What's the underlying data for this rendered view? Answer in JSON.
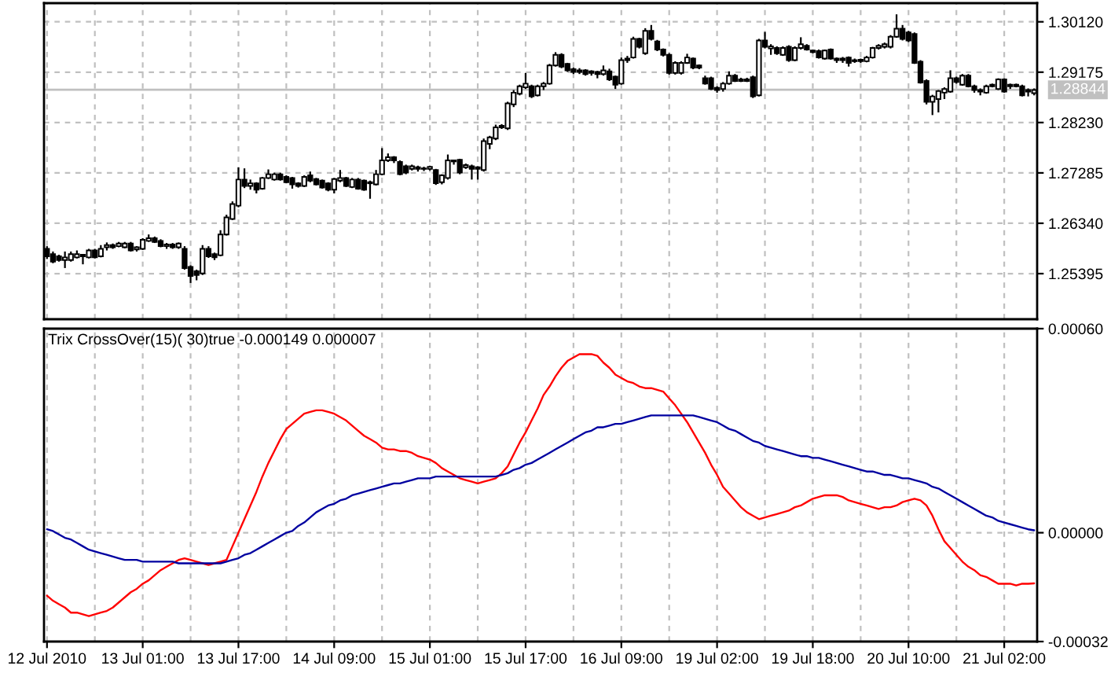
{
  "chart_data": [
    {
      "type": "candlestick",
      "categories": [
        null,
        null,
        null,
        null,
        null,
        null,
        null,
        null,
        null,
        null,
        null,
        null,
        null,
        null,
        null,
        null,
        null,
        null,
        null,
        null,
        null,
        null,
        null,
        null,
        null,
        null,
        null,
        null,
        null,
        null,
        null,
        null,
        null,
        null,
        null,
        null,
        null,
        null,
        null,
        null,
        null,
        null,
        null,
        null,
        null,
        null,
        null,
        null,
        null,
        null,
        null,
        null,
        null,
        null,
        null,
        null,
        null,
        null,
        null,
        null,
        null,
        null,
        null,
        null,
        null,
        null,
        null,
        null,
        null,
        null,
        null,
        null,
        null,
        null,
        null,
        null,
        null,
        null,
        null,
        null,
        null,
        null,
        null,
        null,
        null,
        null,
        null,
        null,
        null,
        null,
        null,
        null,
        null,
        null,
        null,
        null,
        null,
        null,
        null,
        null,
        null,
        null,
        null,
        null,
        null,
        null,
        null,
        null,
        null,
        null,
        null,
        null,
        null,
        null,
        null,
        null,
        null,
        null,
        null,
        null,
        null,
        null,
        null,
        null,
        null,
        null,
        null,
        null,
        null,
        null,
        null,
        null,
        null,
        null,
        null,
        null,
        null,
        null,
        null,
        null,
        null,
        null,
        null,
        null,
        null,
        null,
        null,
        null,
        null,
        null,
        null,
        null,
        null,
        null,
        null,
        null,
        null,
        null,
        null,
        null,
        null,
        null,
        null,
        null,
        null,
        null
      ],
      "ohlc": [
        [
          1.2586,
          1.2591,
          1.2567,
          1.2572
        ],
        [
          1.2576,
          1.2581,
          1.2559,
          1.2562
        ],
        [
          1.2572,
          1.2575,
          1.2562,
          1.2565
        ],
        [
          1.2565,
          1.2581,
          1.255,
          1.257
        ],
        [
          1.2565,
          1.2581,
          1.2562,
          1.2576
        ],
        [
          1.257,
          1.2583,
          1.2568,
          1.2576
        ],
        [
          1.2575,
          1.2576,
          1.2557,
          1.2572
        ],
        [
          1.257,
          1.2586,
          1.2568,
          1.2583
        ],
        [
          1.2583,
          1.2586,
          1.2568,
          1.257
        ],
        [
          1.2572,
          1.2593,
          1.257,
          1.2586
        ],
        [
          1.2589,
          1.2598,
          1.2583,
          1.2593
        ],
        [
          1.2593,
          1.2596,
          1.2586,
          1.2589
        ],
        [
          1.2591,
          1.2599,
          1.2589,
          1.2596
        ],
        [
          1.2589,
          1.2599,
          1.2587,
          1.2596
        ],
        [
          1.2596,
          1.2599,
          1.2581,
          1.2583
        ],
        [
          1.2585,
          1.2591,
          1.2581,
          1.2589
        ],
        [
          1.2586,
          1.2606,
          1.2584,
          1.2603
        ],
        [
          1.2601,
          1.2613,
          1.2599,
          1.2606
        ],
        [
          1.2606,
          1.2609,
          1.2597,
          1.2599
        ],
        [
          1.2601,
          1.2604,
          1.2589,
          1.2591
        ],
        [
          1.2591,
          1.2597,
          1.2586,
          1.2594
        ],
        [
          1.2594,
          1.2597,
          1.2586,
          1.2589
        ],
        [
          1.2589,
          1.2598,
          1.2586,
          1.2596
        ],
        [
          1.2586,
          1.2591,
          1.2547,
          1.255
        ],
        [
          1.2552,
          1.2555,
          1.2522,
          1.2535
        ],
        [
          1.2544,
          1.2547,
          1.2527,
          1.2537
        ],
        [
          1.254,
          1.2593,
          1.2537,
          1.2586
        ],
        [
          1.2586,
          1.2591,
          1.2569,
          1.2572
        ],
        [
          1.2576,
          1.2579,
          1.2565,
          1.257
        ],
        [
          1.2574,
          1.2621,
          1.2572,
          1.2613
        ],
        [
          1.2613,
          1.265,
          1.2611,
          1.2645
        ],
        [
          1.2642,
          1.2675,
          1.264,
          1.267
        ],
        [
          1.2667,
          1.2739,
          1.2664,
          1.2716
        ],
        [
          1.2716,
          1.2737,
          1.27,
          1.2704
        ],
        [
          1.2704,
          1.2716,
          1.2697,
          1.2709
        ],
        [
          1.2709,
          1.2711,
          1.269,
          1.2697
        ],
        [
          1.2699,
          1.2721,
          1.2697,
          1.2719
        ],
        [
          1.2719,
          1.2735,
          1.2717,
          1.2726
        ],
        [
          1.2716,
          1.2729,
          1.2714,
          1.2726
        ],
        [
          1.2726,
          1.2729,
          1.2714,
          1.2716
        ],
        [
          1.2721,
          1.2724,
          1.2709,
          1.2711
        ],
        [
          1.2719,
          1.2721,
          1.2699,
          1.2707
        ],
        [
          1.2709,
          1.2711,
          1.2701,
          1.2704
        ],
        [
          1.2704,
          1.2724,
          1.2702,
          1.2721
        ],
        [
          1.2724,
          1.2731,
          1.2711,
          1.2714
        ],
        [
          1.2717,
          1.2719,
          1.2705,
          1.2707
        ],
        [
          1.2714,
          1.2716,
          1.2699,
          1.2701
        ],
        [
          1.2709,
          1.2711,
          1.2694,
          1.2697
        ],
        [
          1.2697,
          1.2719,
          1.269,
          1.2717
        ],
        [
          1.2714,
          1.2734,
          1.2711,
          1.2719
        ],
        [
          1.2719,
          1.2721,
          1.2702,
          1.2704
        ],
        [
          1.2702,
          1.2719,
          1.27,
          1.2716
        ],
        [
          1.2716,
          1.2719,
          1.2697,
          1.2699
        ],
        [
          1.2714,
          1.2716,
          1.2695,
          1.2697
        ],
        [
          1.2709,
          1.2714,
          1.268,
          1.2711
        ],
        [
          1.2707,
          1.2734,
          1.2705,
          1.2726
        ],
        [
          1.2726,
          1.2775,
          1.2724,
          1.2752
        ],
        [
          1.2752,
          1.2765,
          1.2749,
          1.2758
        ],
        [
          1.2758,
          1.276,
          1.2747,
          1.2752
        ],
        [
          1.2749,
          1.2752,
          1.2724,
          1.2726
        ],
        [
          1.2741,
          1.2744,
          1.2726,
          1.2729
        ],
        [
          1.2736,
          1.2744,
          1.2733,
          1.2741
        ],
        [
          1.2739,
          1.2742,
          1.2731,
          1.2736
        ],
        [
          1.2736,
          1.274,
          1.2732,
          1.2737
        ],
        [
          1.2736,
          1.2742,
          1.2733,
          1.274
        ],
        [
          1.2734,
          1.2736,
          1.2706,
          1.2709
        ],
        [
          1.2711,
          1.2726,
          1.2707,
          1.2724
        ],
        [
          1.2719,
          1.2763,
          1.2716,
          1.2752
        ],
        [
          1.2752,
          1.2753,
          1.2744,
          1.275
        ],
        [
          1.2753,
          1.2755,
          1.2726,
          1.2729
        ],
        [
          1.2739,
          1.2746,
          1.2736,
          1.2743
        ],
        [
          1.2741,
          1.2744,
          1.2716,
          1.2736
        ],
        [
          1.2736,
          1.2741,
          1.2716,
          1.2739
        ],
        [
          1.2734,
          1.2793,
          1.2731,
          1.2788
        ],
        [
          1.2783,
          1.2798,
          1.2773,
          1.2795
        ],
        [
          1.2793,
          1.2819,
          1.279,
          1.2814
        ],
        [
          1.2814,
          1.282,
          1.2811,
          1.2817
        ],
        [
          1.2812,
          1.2862,
          1.2809,
          1.2859
        ],
        [
          1.2857,
          1.2884,
          1.2852,
          1.2879
        ],
        [
          1.2877,
          1.2894,
          1.2874,
          1.2891
        ],
        [
          1.2889,
          1.2916,
          1.2886,
          1.2896
        ],
        [
          1.2891,
          1.2894,
          1.2869,
          1.2872
        ],
        [
          1.2874,
          1.2894,
          1.2872,
          1.2891
        ],
        [
          1.2891,
          1.2899,
          1.2884,
          1.2896
        ],
        [
          1.2896,
          1.2933,
          1.2894,
          1.293
        ],
        [
          1.293,
          1.2955,
          1.2928,
          1.295
        ],
        [
          1.295,
          1.2953,
          1.2925,
          1.2928
        ],
        [
          1.2933,
          1.2935,
          1.2918,
          1.2921
        ],
        [
          1.2923,
          1.2926,
          1.2914,
          1.2918
        ],
        [
          1.2918,
          1.2925,
          1.2914,
          1.2921
        ],
        [
          1.2921,
          1.2923,
          1.2911,
          1.2914
        ],
        [
          1.2916,
          1.2921,
          1.2911,
          1.2919
        ],
        [
          1.2918,
          1.292,
          1.2906,
          1.2914
        ],
        [
          1.2914,
          1.293,
          1.2911,
          1.2921
        ],
        [
          1.2919,
          1.2924,
          1.2901,
          1.2904
        ],
        [
          1.2909,
          1.2911,
          1.2886,
          1.2894
        ],
        [
          1.2896,
          1.2945,
          1.2894,
          1.294
        ],
        [
          1.294,
          1.2948,
          1.2935,
          1.2943
        ],
        [
          1.2945,
          1.2984,
          1.2943,
          1.298
        ],
        [
          1.298,
          1.2982,
          1.2962,
          1.2965
        ],
        [
          1.2953,
          1.3,
          1.295,
          1.2995
        ],
        [
          1.2995,
          1.3006,
          1.2977,
          1.298
        ],
        [
          1.2975,
          1.2978,
          1.2957,
          1.296
        ],
        [
          1.296,
          1.2962,
          1.2947,
          1.295
        ],
        [
          1.295,
          1.2953,
          1.2913,
          1.2916
        ],
        [
          1.2916,
          1.2938,
          1.2913,
          1.2935
        ],
        [
          1.2916,
          1.2938,
          1.2913,
          1.2935
        ],
        [
          1.2935,
          1.2952,
          1.2933,
          1.2945
        ],
        [
          1.2943,
          1.2945,
          1.2923,
          1.2926
        ],
        [
          1.293,
          1.2932,
          1.2923,
          1.2926
        ],
        [
          1.2906,
          1.2911,
          1.2894,
          1.2896
        ],
        [
          1.2906,
          1.2909,
          1.2884,
          1.2886
        ],
        [
          1.2888,
          1.2891,
          1.2879,
          1.2884
        ],
        [
          1.2886,
          1.2899,
          1.2881,
          1.2896
        ],
        [
          1.2896,
          1.2919,
          1.2894,
          1.2911
        ],
        [
          1.2911,
          1.2914,
          1.2899,
          1.2901
        ],
        [
          1.2901,
          1.2907,
          1.2899,
          1.2904
        ],
        [
          1.2904,
          1.2907,
          1.2899,
          1.2901
        ],
        [
          1.2908,
          1.2911,
          1.2869,
          1.2872
        ],
        [
          1.2874,
          1.298,
          1.2872,
          1.2977
        ],
        [
          1.2977,
          1.2993,
          1.2962,
          1.2965
        ],
        [
          1.2962,
          1.297,
          1.295,
          1.2966
        ],
        [
          1.2963,
          1.2966,
          1.295,
          1.2953
        ],
        [
          1.295,
          1.2966,
          1.2948,
          1.2963
        ],
        [
          1.2965,
          1.2968,
          1.2937,
          1.294
        ],
        [
          1.294,
          1.2966,
          1.2938,
          1.2963
        ],
        [
          1.2963,
          1.2983,
          1.296,
          1.297
        ],
        [
          1.2967,
          1.297,
          1.2958,
          1.296
        ],
        [
          1.2958,
          1.296,
          1.2953,
          1.2955
        ],
        [
          1.2957,
          1.296,
          1.2943,
          1.2945
        ],
        [
          1.2943,
          1.296,
          1.2941,
          1.2958
        ],
        [
          1.296,
          1.2962,
          1.2941,
          1.2943
        ],
        [
          1.2943,
          1.2945,
          1.2935,
          1.294
        ],
        [
          1.294,
          1.2946,
          1.2935,
          1.2943
        ],
        [
          1.2945,
          1.2947,
          1.2928,
          1.2935
        ],
        [
          1.2938,
          1.2943,
          1.2935,
          1.294
        ],
        [
          1.2941,
          1.2943,
          1.2935,
          1.2938
        ],
        [
          1.2938,
          1.2948,
          1.2936,
          1.2945
        ],
        [
          1.2945,
          1.2965,
          1.2943,
          1.2963
        ],
        [
          1.2963,
          1.297,
          1.296,
          1.2967
        ],
        [
          1.2965,
          1.2973,
          1.2962,
          1.297
        ],
        [
          1.2965,
          1.2987,
          1.2962,
          1.2984
        ],
        [
          1.2984,
          1.3026,
          1.2982,
          1.2999
        ],
        [
          1.2999,
          1.3006,
          1.2977,
          1.298
        ],
        [
          1.2992,
          1.2995,
          1.2974,
          1.2977
        ],
        [
          1.2989,
          1.2992,
          1.2933,
          1.2935
        ],
        [
          1.2937,
          1.294,
          1.2896,
          1.2898
        ],
        [
          1.2901,
          1.2904,
          1.2857,
          1.2862
        ],
        [
          1.2862,
          1.2875,
          1.2837,
          1.2872
        ],
        [
          1.2867,
          1.2884,
          1.2842,
          1.2882
        ],
        [
          1.2879,
          1.2889,
          1.2867,
          1.2886
        ],
        [
          1.2881,
          1.2921,
          1.2879,
          1.2906
        ],
        [
          1.2906,
          1.2909,
          1.2896,
          1.2899
        ],
        [
          1.2894,
          1.2914,
          1.2892,
          1.2911
        ],
        [
          1.2911,
          1.2914,
          1.2889,
          1.2891
        ],
        [
          1.2891,
          1.2894,
          1.2879,
          1.2884
        ],
        [
          1.2884,
          1.2887,
          1.2874,
          1.2881
        ],
        [
          1.2879,
          1.2894,
          1.2877,
          1.2891
        ],
        [
          1.2891,
          1.2896,
          1.2889,
          1.2894
        ],
        [
          1.2886,
          1.2906,
          1.2884,
          1.2904
        ],
        [
          1.2904,
          1.2906,
          1.2879,
          1.2881
        ],
        [
          1.2891,
          1.2896,
          1.2886,
          1.2894
        ],
        [
          1.2894,
          1.2896,
          1.2889,
          1.2891
        ],
        [
          1.2891,
          1.2894,
          1.2872,
          1.2874
        ],
        [
          1.2884,
          1.2887,
          1.2872,
          1.2881
        ],
        [
          1.2878,
          1.2887,
          1.2874,
          1.2884
        ]
      ],
      "ylim": [
        1.2454,
        1.3047
      ],
      "yticks": [
        {
          "value": 1.3012,
          "label": "1.30120"
        },
        1.29175,
        {
          "value": 1.2823,
          "label": "1.28230"
        },
        1.27285,
        {
          "value": 1.2634,
          "label": "1.26340"
        },
        1.25395
      ],
      "grid": true,
      "tick_labels": "y",
      "ref_lines": [
        {
          "axis": "y",
          "value": 1.28844,
          "label": "1.28844",
          "color": "#c0c0c0"
        }
      ]
    },
    {
      "type": "line",
      "title": "Trix CrossOver(15)( 30)true -0.000149 0.000007",
      "categories": [
        "12 Jul 2010",
        null,
        null,
        null,
        null,
        null,
        null,
        null,
        null,
        null,
        null,
        null,
        null,
        null,
        null,
        null,
        "13 Jul 01:00",
        null,
        null,
        null,
        null,
        null,
        null,
        null,
        null,
        null,
        null,
        null,
        null,
        null,
        null,
        null,
        "13 Jul 17:00",
        null,
        null,
        null,
        null,
        null,
        null,
        null,
        null,
        null,
        null,
        null,
        null,
        null,
        null,
        null,
        "14 Jul 09:00",
        null,
        null,
        null,
        null,
        null,
        null,
        null,
        null,
        null,
        null,
        null,
        null,
        null,
        null,
        null,
        "15 Jul 01:00",
        null,
        null,
        null,
        null,
        null,
        null,
        null,
        null,
        null,
        null,
        null,
        null,
        null,
        null,
        null,
        "15 Jul 17:00",
        null,
        null,
        null,
        null,
        null,
        null,
        null,
        null,
        null,
        null,
        null,
        null,
        null,
        null,
        null,
        "16 Jul 09:00",
        null,
        null,
        null,
        null,
        null,
        null,
        null,
        null,
        null,
        null,
        null,
        null,
        null,
        null,
        null,
        "19 Jul 02:00",
        null,
        null,
        null,
        null,
        null,
        null,
        null,
        null,
        null,
        null,
        null,
        null,
        null,
        null,
        null,
        "19 Jul 18:00",
        null,
        null,
        null,
        null,
        null,
        null,
        null,
        null,
        null,
        null,
        null,
        null,
        null,
        null,
        null,
        "20 Jul 10:00",
        null,
        null,
        null,
        null,
        null,
        null,
        null,
        null,
        null,
        null,
        null,
        null,
        null,
        null,
        null,
        "21 Jul 02:00",
        null,
        null,
        null,
        null,
        null
      ],
      "series": [
        {
          "color": "#ff0000",
          "values": [
            -0.000185,
            -0.0002,
            -0.00021,
            -0.00022,
            -0.000235,
            -0.000235,
            -0.00024,
            -0.000245,
            -0.00024,
            -0.000235,
            -0.00023,
            -0.00022,
            -0.000205,
            -0.00019,
            -0.000175,
            -0.000165,
            -0.00015,
            -0.00014,
            -0.000125,
            -0.00011,
            -0.0001,
            -9e-05,
            -8e-05,
            -7.5e-05,
            -8e-05,
            -8.5e-05,
            -9e-05,
            -9.5e-05,
            -9e-05,
            -8.5e-05,
            -8e-05,
            -4e-05,
            0,
            4e-05,
            8e-05,
            0.00012,
            0.000165,
            0.000205,
            0.00024,
            0.000275,
            0.000305,
            0.00032,
            0.000335,
            0.00035,
            0.000355,
            0.00036,
            0.00036,
            0.000355,
            0.00035,
            0.00034,
            0.00033,
            0.000315,
            0.0003,
            0.000285,
            0.000275,
            0.000265,
            0.00025,
            0.000245,
            0.000245,
            0.00024,
            0.00024,
            0.000235,
            0.000225,
            0.00022,
            0.000215,
            0.000205,
            0.00019,
            0.00018,
            0.00017,
            0.00016,
            0.000155,
            0.00015,
            0.000145,
            0.00015,
            0.000155,
            0.00016,
            0.000175,
            0.000195,
            0.00023,
            0.000265,
            0.000295,
            0.00033,
            0.000365,
            0.000405,
            0.00043,
            0.00046,
            0.000485,
            0.000505,
            0.000515,
            0.000525,
            0.000525,
            0.000525,
            0.00052,
            0.0005,
            0.000485,
            0.000465,
            0.000455,
            0.000445,
            0.00044,
            0.00043,
            0.000425,
            0.000425,
            0.00042,
            0.000415,
            0.000395,
            0.000375,
            0.00035,
            0.000325,
            0.000295,
            0.000265,
            0.000235,
            0.0002,
            0.00017,
            0.000135,
            0.000115,
            9.5e-05,
            7.5e-05,
            6e-05,
            5e-05,
            4e-05,
            4.5e-05,
            5e-05,
            5.5e-05,
            6e-05,
            6.5e-05,
            7.5e-05,
            8e-05,
            9e-05,
            0.0001,
            0.000105,
            0.00011,
            0.00011,
            0.00011,
            0.000105,
            9.5e-05,
            9e-05,
            8.5e-05,
            8e-05,
            7.5e-05,
            7e-05,
            7.5e-05,
            7.5e-05,
            8e-05,
            9e-05,
            9.5e-05,
            0.0001,
            9.5e-05,
            8e-05,
            5e-05,
            1e-05,
            -2.5e-05,
            -4.5e-05,
            -6.5e-05,
            -8.5e-05,
            -0.0001,
            -0.00011,
            -0.000125,
            -0.00013,
            -0.00014,
            -0.00015,
            -0.00015,
            -0.00015,
            -0.000155,
            -0.00015,
            -0.00015,
            -0.000149
          ]
        },
        {
          "color": "#0000a0",
          "values": [
            1e-05,
            5e-06,
            -5e-06,
            -1.5e-05,
            -2e-05,
            -3e-05,
            -4e-05,
            -5e-05,
            -5.5e-05,
            -6e-05,
            -6.5e-05,
            -7e-05,
            -7.5e-05,
            -8e-05,
            -8e-05,
            -8e-05,
            -8.5e-05,
            -8.5e-05,
            -8.5e-05,
            -8.5e-05,
            -8.5e-05,
            -8.5e-05,
            -9e-05,
            -9e-05,
            -9e-05,
            -9e-05,
            -9e-05,
            -9e-05,
            -9e-05,
            -9e-05,
            -8.5e-05,
            -8e-05,
            -7.5e-05,
            -6.5e-05,
            -6e-05,
            -5e-05,
            -4e-05,
            -3e-05,
            -2e-05,
            -1e-05,
            0,
            5e-06,
            2e-05,
            3e-05,
            4.5e-05,
            6e-05,
            7e-05,
            8e-05,
            8.5e-05,
            9.5e-05,
            0.0001,
            0.00011,
            0.000115,
            0.00012,
            0.000125,
            0.00013,
            0.000135,
            0.00014,
            0.000145,
            0.000145,
            0.00015,
            0.000155,
            0.00016,
            0.00016,
            0.00016,
            0.000165,
            0.000165,
            0.000165,
            0.000165,
            0.000165,
            0.000165,
            0.000165,
            0.000165,
            0.000165,
            0.000165,
            0.000165,
            0.00017,
            0.000175,
            0.000185,
            0.00019,
            0.0002,
            0.000205,
            0.000215,
            0.000225,
            0.000235,
            0.000245,
            0.000255,
            0.000265,
            0.000275,
            0.000285,
            0.000295,
            0.0003,
            0.00031,
            0.00031,
            0.000315,
            0.00032,
            0.00032,
            0.000325,
            0.00033,
            0.000335,
            0.00034,
            0.000345,
            0.000345,
            0.000345,
            0.000345,
            0.000345,
            0.000345,
            0.000345,
            0.000345,
            0.00034,
            0.000335,
            0.00033,
            0.000325,
            0.000315,
            0.000305,
            0.0003,
            0.00029,
            0.00028,
            0.00027,
            0.000265,
            0.000255,
            0.00025,
            0.000245,
            0.00024,
            0.000235,
            0.00023,
            0.000225,
            0.000225,
            0.00022,
            0.00022,
            0.000215,
            0.00021,
            0.000205,
            0.0002,
            0.000195,
            0.00019,
            0.000185,
            0.00018,
            0.00018,
            0.000175,
            0.00017,
            0.00017,
            0.000165,
            0.00016,
            0.00016,
            0.000155,
            0.00015,
            0.000145,
            0.000135,
            0.00013,
            0.00012,
            0.00011,
            0.0001,
            9e-05,
            8e-05,
            7e-05,
            6e-05,
            5e-05,
            4.5e-05,
            3.5e-05,
            3e-05,
            2.5e-05,
            2e-05,
            1.5e-05,
            1e-05,
            7e-06
          ]
        }
      ],
      "ylim": [
        -0.00032,
        0.0006
      ],
      "yticks": [
        {
          "value": 0.0006,
          "label": "0.00060"
        },
        {
          "value": 0,
          "label": "0.00000"
        },
        {
          "value": -0.00032,
          "label": "-0.00032"
        }
      ],
      "grid": true
    }
  ]
}
